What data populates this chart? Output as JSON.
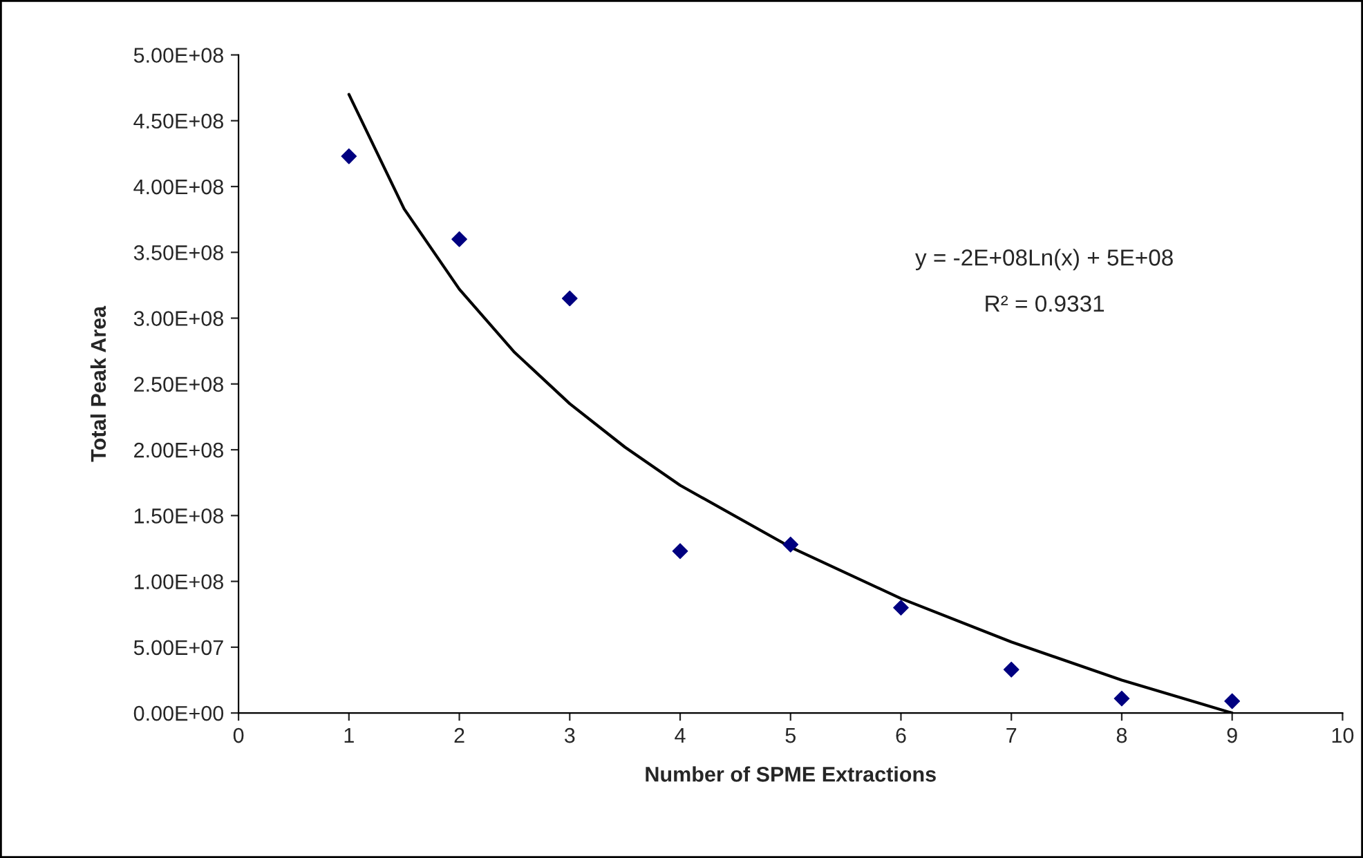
{
  "chart_data": {
    "type": "scatter",
    "xlabel": "Number of SPME Extractions",
    "ylabel": "Total Peak Area",
    "xlim": [
      0,
      10
    ],
    "xticks": [
      0,
      1,
      2,
      3,
      4,
      5,
      6,
      7,
      8,
      9,
      10
    ],
    "ylim": [
      0,
      500000000
    ],
    "yticks": [
      {
        "value": 0,
        "label": "0.00E+00"
      },
      {
        "value": 50000000,
        "label": "5.00E+07"
      },
      {
        "value": 100000000,
        "label": "1.00E+08"
      },
      {
        "value": 150000000,
        "label": "1.50E+08"
      },
      {
        "value": 200000000,
        "label": "2.00E+08"
      },
      {
        "value": 250000000,
        "label": "2.50E+08"
      },
      {
        "value": 300000000,
        "label": "3.00E+08"
      },
      {
        "value": 350000000,
        "label": "3.50E+08"
      },
      {
        "value": 400000000,
        "label": "4.00E+08"
      },
      {
        "value": 450000000,
        "label": "4.50E+08"
      },
      {
        "value": 500000000,
        "label": "5.00E+08"
      }
    ],
    "series": [
      {
        "marker": "diamond",
        "color": "#000080",
        "x": [
          1,
          2,
          3,
          4,
          5,
          6,
          7,
          8,
          9
        ],
        "values": [
          423000000,
          360000000,
          315000000,
          123000000,
          128000000,
          80000000,
          33000000,
          11000000,
          9000000
        ]
      },
      {
        "type": "line",
        "marker": "none",
        "line_style": "solid",
        "color": "#000000",
        "x": [
          1,
          1.5,
          2,
          2.5,
          3,
          3.5,
          4,
          5,
          6,
          7,
          8,
          9
        ],
        "values": [
          470000000,
          383000000,
          322000000,
          274000000,
          235000000,
          202000000,
          173000000,
          126000000,
          87000000,
          54000000,
          25000000,
          0
        ]
      }
    ],
    "annotations": [
      "y = -2E+08Ln(x) + 5E+08",
      "R² = 0.9331"
    ],
    "grid": false,
    "legend": false
  }
}
